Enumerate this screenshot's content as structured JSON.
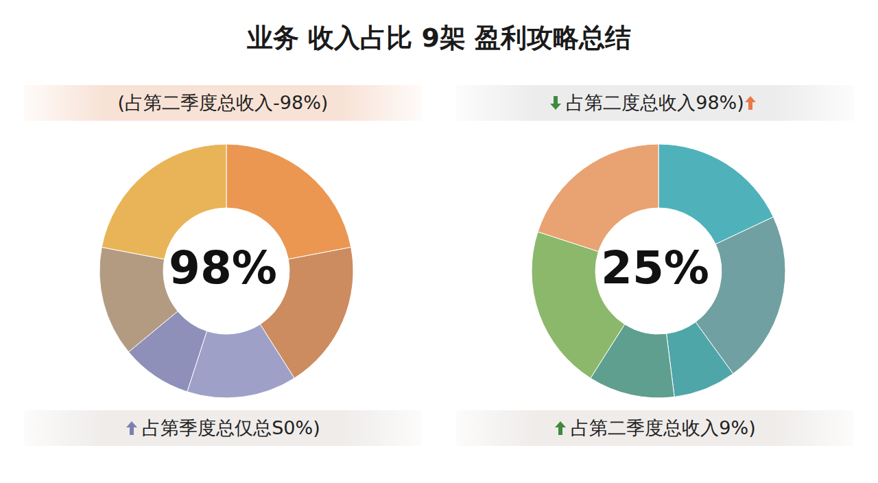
{
  "title": "业务 收入占比 9架 盈利攻略总结",
  "chart_data": [
    {
      "type": "pie",
      "title": "(占第二季度总收入-98%)",
      "center_text": "98%",
      "caption": "占第季度总仅总S0%)",
      "values": [
        22,
        19,
        14,
        9,
        14,
        22
      ],
      "colors": [
        "#eb9752",
        "#cc8c60",
        "#9fa0c8",
        "#8e90ba",
        "#b39b82",
        "#e9b457"
      ]
    },
    {
      "type": "pie",
      "title": "占第二度总收入98%)",
      "center_text": "25%",
      "caption": "占第二季度总收入9%)",
      "values": [
        18,
        22,
        8,
        11,
        21,
        20
      ],
      "colors": [
        "#4fb2ba",
        "#70a0a2",
        "#4ea6a9",
        "#5f9f8f",
        "#8cb86b",
        "#e9a271"
      ]
    }
  ]
}
